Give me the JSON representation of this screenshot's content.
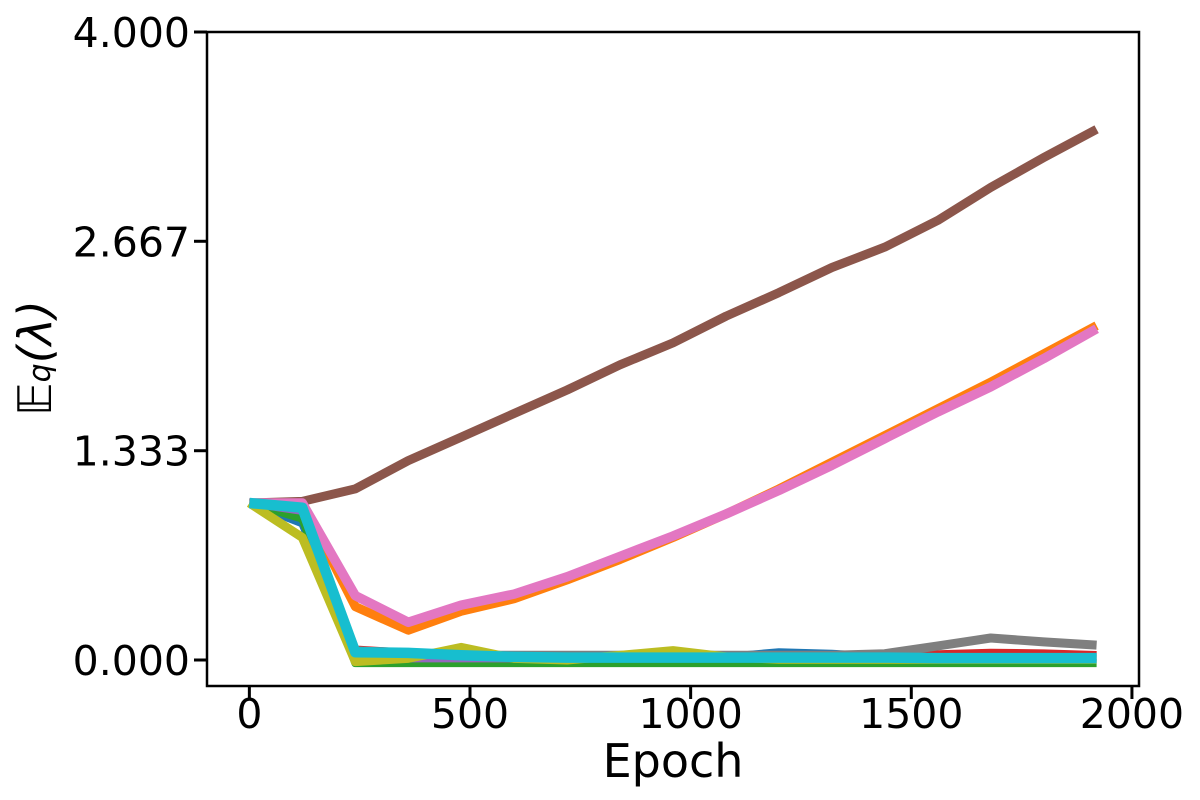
{
  "figure": {
    "background": "#ffffff",
    "ylabel_main": "𝔼",
    "ylabel_sub": "q",
    "ylabel_rest": "(λ)"
  },
  "chart_data": {
    "type": "line",
    "title": "",
    "xlabel": "Epoch",
    "ylabel": "E_q(lambda)",
    "grid": false,
    "legend": null,
    "xlim": [
      -96,
      2016
    ],
    "ylim": [
      -0.1656,
      4.0
    ],
    "xticks": {
      "values": [
        0,
        500,
        1000,
        1500,
        2000
      ],
      "labels": [
        "0",
        "500",
        "1000",
        "1500",
        "2000"
      ]
    },
    "yticks": {
      "values": [
        0,
        1.333,
        2.667,
        4.0
      ],
      "labels": [
        "0.000",
        "1.333",
        "2.667",
        "4.000"
      ]
    },
    "x": [
      0,
      120,
      240,
      360,
      480,
      600,
      720,
      840,
      960,
      1080,
      1200,
      1320,
      1440,
      1560,
      1680,
      1800,
      1920
    ],
    "series": [
      {
        "name": "series-blue",
        "color": "#1f77b4",
        "width": 8,
        "values": [
          1.0,
          0.87,
          0.03,
          0.03,
          0.02,
          0.02,
          0.02,
          0.02,
          0.02,
          0.02,
          0.05,
          0.04,
          0.02,
          0.02,
          0.02,
          0.02,
          0.02
        ]
      },
      {
        "name": "series-orange",
        "color": "#ff7f0e",
        "width": 9,
        "values": [
          1.0,
          1.0,
          0.34,
          0.19,
          0.31,
          0.39,
          0.51,
          0.64,
          0.78,
          0.93,
          1.09,
          1.26,
          1.43,
          1.6,
          1.77,
          1.95,
          2.13
        ]
      },
      {
        "name": "series-green",
        "color": "#2ca02c",
        "width": 8,
        "values": [
          1.0,
          0.9,
          -0.02,
          -0.02,
          -0.02,
          -0.02,
          -0.02,
          -0.02,
          -0.02,
          -0.02,
          -0.02,
          -0.02,
          -0.02,
          -0.02,
          -0.02,
          -0.02,
          -0.02
        ]
      },
      {
        "name": "series-red",
        "color": "#d62728",
        "width": 7,
        "values": [
          1.0,
          0.96,
          0.07,
          0.05,
          0.04,
          0.03,
          0.03,
          0.03,
          0.03,
          0.03,
          0.03,
          0.03,
          0.03,
          0.04,
          0.05,
          0.045,
          0.035
        ]
      },
      {
        "name": "series-purple",
        "color": "#9467bd",
        "width": 8,
        "values": [
          1.0,
          0.95,
          0.01,
          0.01,
          0.01,
          0.01,
          0.01,
          0.01,
          0.01,
          0.01,
          0.01,
          0.01,
          0.01,
          0.01,
          0.01,
          0.01,
          0.01
        ]
      },
      {
        "name": "series-brown",
        "color": "#8c564b",
        "width": 9,
        "values": [
          1.0,
          1.01,
          1.09,
          1.27,
          1.42,
          1.57,
          1.72,
          1.88,
          2.02,
          2.19,
          2.34,
          2.5,
          2.63,
          2.8,
          3.01,
          3.2,
          3.38
        ]
      },
      {
        "name": "series-pink",
        "color": "#e377c2",
        "width": 9.5,
        "values": [
          1.0,
          1.0,
          0.41,
          0.24,
          0.35,
          0.42,
          0.53,
          0.66,
          0.79,
          0.93,
          1.08,
          1.24,
          1.41,
          1.58,
          1.74,
          1.92,
          2.11
        ]
      },
      {
        "name": "series-gray",
        "color": "#7f7f7f",
        "width": 9,
        "values": [
          1.0,
          0.97,
          0.06,
          0.04,
          0.03,
          0.03,
          0.03,
          0.03,
          0.03,
          0.03,
          0.03,
          0.03,
          0.04,
          0.09,
          0.14,
          0.115,
          0.095
        ]
      },
      {
        "name": "series-olive",
        "color": "#bcbd22",
        "width": 9,
        "values": [
          1.0,
          0.78,
          -0.01,
          0.01,
          0.08,
          0.01,
          0.0,
          0.03,
          0.06,
          0.02,
          0.005,
          0.005,
          0.005,
          0.005,
          0.005,
          0.005,
          0.005
        ]
      },
      {
        "name": "series-cyan",
        "color": "#17becf",
        "width": 10.5,
        "values": [
          1.0,
          0.97,
          0.05,
          0.045,
          0.03,
          0.02,
          0.015,
          0.015,
          0.015,
          0.015,
          0.015,
          0.015,
          0.015,
          0.012,
          0.012,
          0.012,
          0.012
        ]
      }
    ]
  }
}
